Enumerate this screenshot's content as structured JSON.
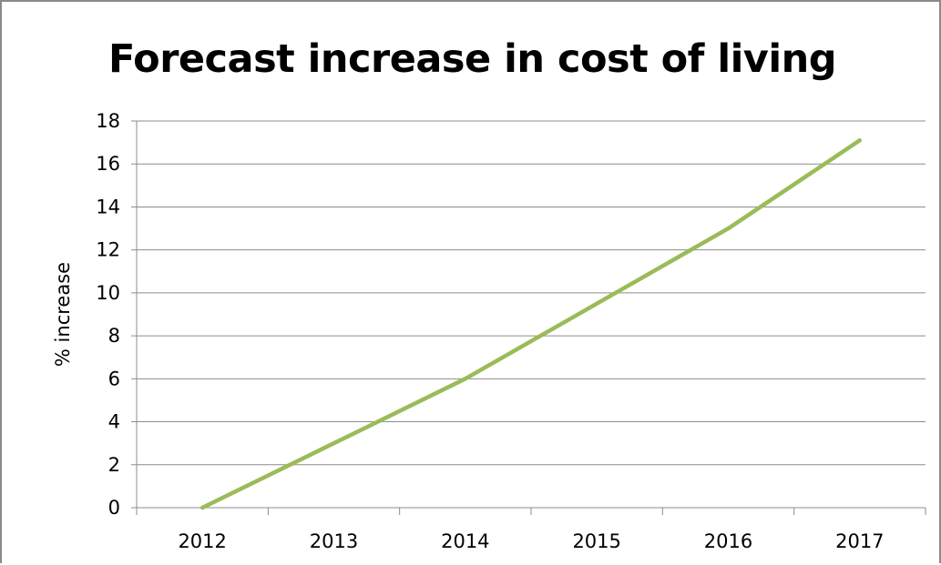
{
  "chart_data": {
    "type": "line",
    "title": "Forecast increase in cost of living",
    "xlabel": "",
    "ylabel": "% increase",
    "categories": [
      "2012",
      "2013",
      "2014",
      "2015",
      "2016",
      "2017"
    ],
    "series": [
      {
        "values": [
          0,
          3.0,
          6.0,
          9.5,
          13.0,
          17.1
        ],
        "color": "#9BBB59"
      }
    ],
    "ylim": [
      0,
      18
    ],
    "yticks": [
      "0",
      "2",
      "4",
      "6",
      "8",
      "10",
      "12",
      "14",
      "16",
      "18"
    ],
    "grid": "horizontal",
    "legend": "none",
    "colors": {
      "gridline": "#8c8c8c",
      "axis": "#8c8c8c",
      "frame": "#8a8a8a"
    }
  }
}
